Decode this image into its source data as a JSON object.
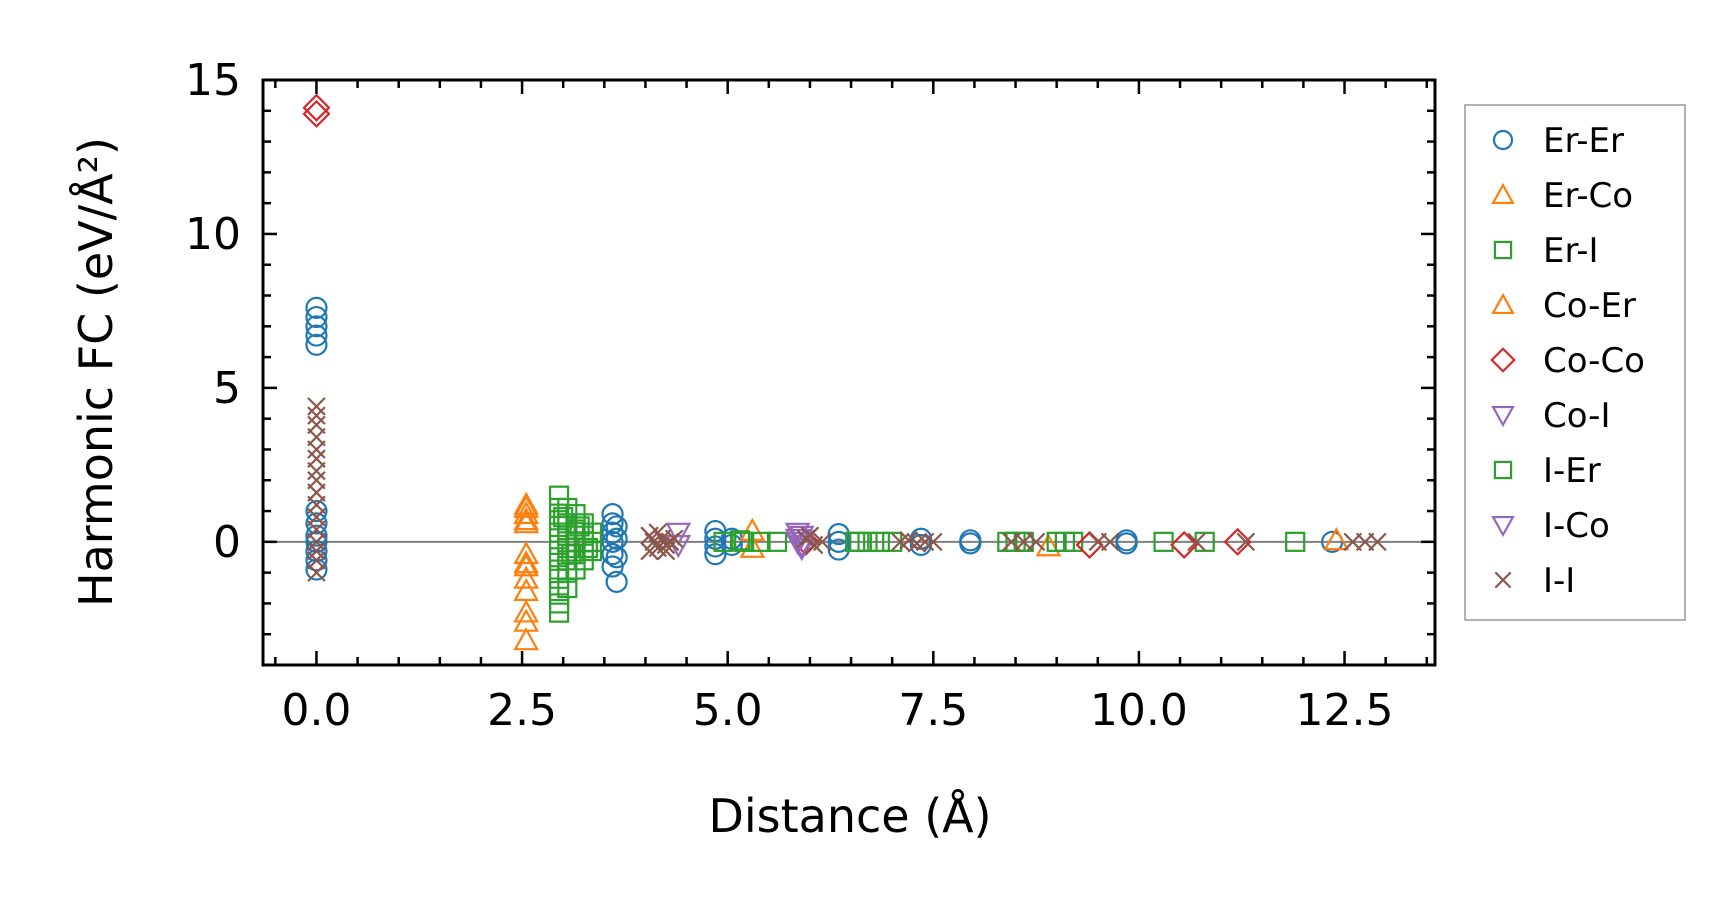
{
  "chart_data": {
    "type": "scatter",
    "title": "",
    "xlabel": "Distance (Å)",
    "ylabel": "Harmonic FC (eV/Å²)",
    "xlim": [
      -0.65,
      13.6
    ],
    "ylim": [
      -4.0,
      15.0
    ],
    "xticks": [
      0.0,
      2.5,
      5.0,
      7.5,
      10.0,
      12.5
    ],
    "xtick_labels": [
      "0.0",
      "2.5",
      "5.0",
      "7.5",
      "10.0",
      "12.5"
    ],
    "yticks": [
      0,
      5,
      10,
      15
    ],
    "ytick_labels": [
      "0",
      "5",
      "10",
      "15"
    ],
    "zero_line": true,
    "legend_position": "right-outside",
    "series": [
      {
        "name": "Er-Er",
        "marker": "circle",
        "color": "#1f77b4",
        "x": [
          0,
          0,
          0,
          0,
          0,
          0,
          0,
          0,
          0,
          0,
          0,
          0,
          3.6,
          3.6,
          3.6,
          3.6,
          3.6,
          3.6,
          3.65,
          3.65,
          3.65,
          3.65,
          4.85,
          4.85,
          4.85,
          4.85,
          5.05,
          5.05,
          6.35,
          6.35,
          6.35,
          7.35,
          7.35,
          7.95,
          7.95,
          9.85,
          9.85,
          12.35
        ],
        "y": [
          7.6,
          7.3,
          7.0,
          6.7,
          6.4,
          1.0,
          0.6,
          0.2,
          0.0,
          -0.3,
          -0.6,
          -0.9,
          0.9,
          0.6,
          0.3,
          0.0,
          -0.4,
          -0.8,
          0.5,
          0.1,
          -0.5,
          -1.3,
          0.35,
          0.1,
          -0.15,
          -0.4,
          0.1,
          -0.1,
          0.25,
          0.0,
          -0.25,
          0.1,
          -0.1,
          0.05,
          -0.05,
          0.05,
          -0.05,
          0.0
        ]
      },
      {
        "name": "Er-Co",
        "marker": "triangle-up",
        "color": "#ff7f0e",
        "x": [
          2.55,
          2.55,
          2.55,
          2.55,
          2.55,
          2.55,
          2.55,
          2.55,
          2.55,
          2.55,
          5.3,
          5.3,
          8.9,
          12.4
        ],
        "y": [
          1.2,
          0.9,
          0.6,
          -0.4,
          -0.8,
          -1.2,
          -1.6,
          -2.3,
          -2.6,
          -3.2,
          0.35,
          -0.2,
          -0.15,
          0.05
        ]
      },
      {
        "name": "Er-I",
        "marker": "square",
        "color": "#2ca02c",
        "x": [
          2.95,
          2.95,
          2.95,
          2.95,
          2.95,
          2.95,
          2.95,
          2.95,
          2.95,
          2.95,
          2.95,
          3.05,
          3.05,
          3.05,
          3.05,
          3.05,
          3.05,
          3.05,
          3.15,
          3.15,
          3.15,
          3.15,
          3.15,
          3.25,
          3.25,
          3.25,
          3.25,
          3.35,
          3.35,
          3.35,
          4.95,
          5.15,
          5.4,
          5.6,
          6.55,
          6.7,
          6.85,
          7.0,
          8.4,
          8.6,
          9.0,
          9.2,
          10.3,
          10.8,
          11.9
        ],
        "y": [
          1.5,
          1.1,
          0.7,
          0.3,
          -0.1,
          -0.5,
          -0.9,
          -1.2,
          -1.6,
          -2.0,
          -2.3,
          1.1,
          0.6,
          0.2,
          -0.2,
          -0.6,
          -1.0,
          -1.5,
          0.9,
          0.4,
          0.0,
          -0.4,
          -0.9,
          0.6,
          0.2,
          -0.2,
          -0.6,
          0.3,
          0.0,
          -0.3,
          0.0,
          0.05,
          0.0,
          0.0,
          0.0,
          0.0,
          0.0,
          0.0,
          0.0,
          0.0,
          0.0,
          0.0,
          0.0,
          0.0,
          0.0
        ]
      },
      {
        "name": "Co-Er",
        "marker": "triangle-up",
        "color": "#ff7f0e",
        "x": [
          2.55,
          2.55,
          2.55
        ],
        "y": [
          1.1,
          0.7,
          -0.7
        ]
      },
      {
        "name": "Co-Co",
        "marker": "diamond",
        "color": "#d62728",
        "x": [
          0,
          0,
          5.95,
          9.4,
          10.55,
          11.2
        ],
        "y": [
          14.1,
          13.9,
          0.0,
          -0.1,
          -0.1,
          0.0
        ]
      },
      {
        "name": "Co-I",
        "marker": "triangle-down",
        "color": "#9467bd",
        "x": [
          4.4,
          4.4,
          5.85,
          5.85,
          5.9,
          5.9
        ],
        "y": [
          0.3,
          -0.1,
          0.3,
          0.0,
          0.2,
          -0.1
        ]
      },
      {
        "name": "I-Er",
        "marker": "square",
        "color": "#2ca02c",
        "x": [
          3.0,
          3.1,
          3.2,
          3.3,
          5.2,
          6.6,
          8.5,
          9.1
        ],
        "y": [
          0.8,
          -0.4,
          0.5,
          -0.2,
          0.0,
          0.0,
          0.0,
          0.0
        ]
      },
      {
        "name": "I-Co",
        "marker": "triangle-down",
        "color": "#9467bd",
        "x": [
          5.85,
          5.9
        ],
        "y": [
          0.1,
          -0.2
        ]
      },
      {
        "name": "I-I",
        "marker": "x",
        "color": "#8c564b",
        "x": [
          0,
          0,
          0,
          0,
          0,
          0,
          0,
          0,
          0,
          0,
          0,
          0,
          0,
          0,
          0,
          0,
          4.05,
          4.1,
          4.15,
          4.2,
          4.25,
          4.3,
          4.05,
          4.15,
          4.25,
          4.35,
          5.95,
          6.05,
          6.15,
          6.0,
          7.1,
          7.2,
          7.3,
          7.4,
          7.5,
          8.45,
          8.6,
          8.75,
          9.5,
          9.65,
          10.7,
          11.3,
          12.6,
          12.75,
          12.9
        ],
        "y": [
          4.4,
          4.1,
          3.8,
          3.4,
          3.0,
          2.7,
          2.3,
          2.0,
          1.6,
          1.2,
          0.8,
          0.4,
          0.0,
          -0.3,
          -0.6,
          -1.0,
          0.2,
          0.0,
          -0.2,
          0.1,
          -0.1,
          0.0,
          -0.3,
          0.3,
          -0.3,
          0.1,
          0.1,
          -0.1,
          0.0,
          0.2,
          0.0,
          0.05,
          -0.05,
          0.0,
          0.0,
          0.0,
          0.0,
          0.0,
          0.0,
          0.0,
          0.0,
          0.0,
          0.0,
          0.0,
          0.0
        ]
      }
    ]
  }
}
